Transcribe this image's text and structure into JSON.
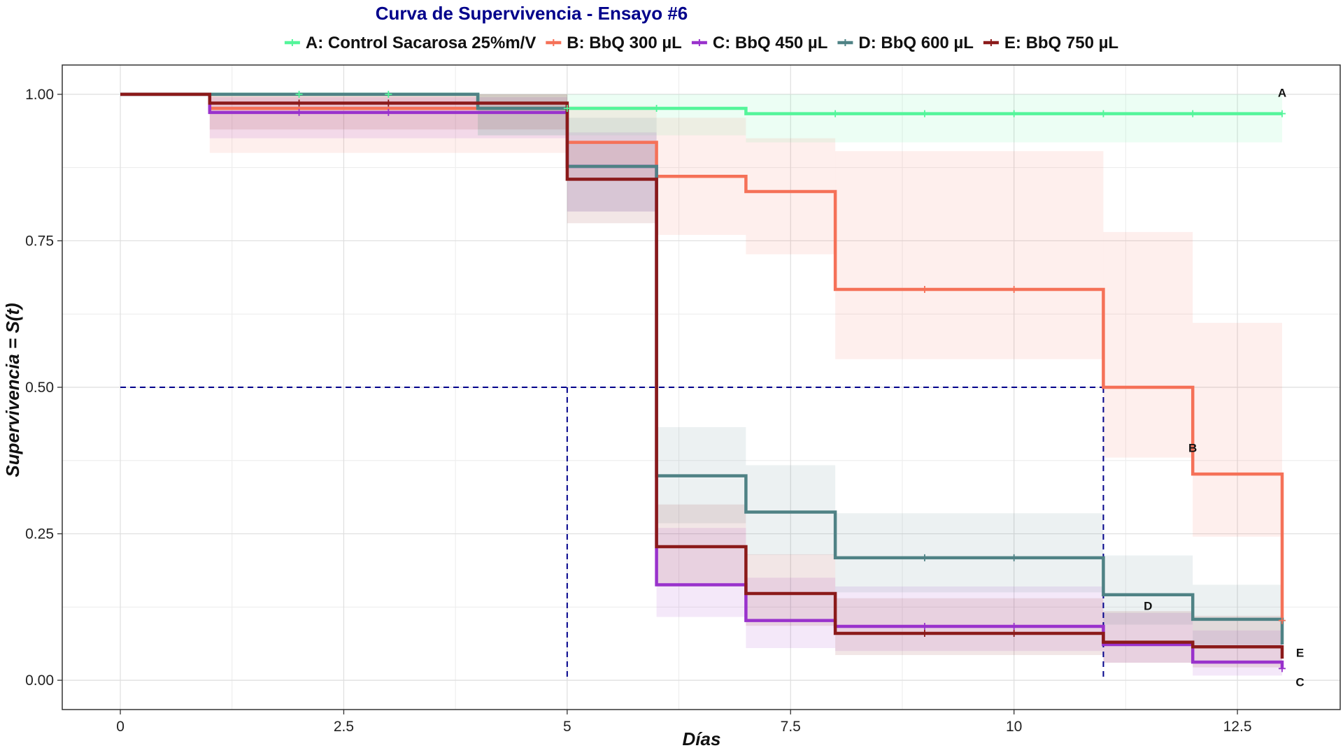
{
  "chart_data": {
    "type": "line",
    "subtype": "kaplan-meier step curves with confidence bands",
    "title": "Curva de Supervivencia - Ensayo #6",
    "xlabel": "Días",
    "ylabel": "Supervivencia = S(t)",
    "xlim": [
      -0.65,
      13.65
    ],
    "ylim": [
      -0.05,
      1.05
    ],
    "xticks": [
      0,
      2.5,
      5,
      7.5,
      10,
      12.5
    ],
    "xtick_labels": [
      "0",
      "2.5",
      "5",
      "7.5",
      "10",
      "12.5"
    ],
    "yticks": [
      0,
      0.25,
      0.5,
      0.75,
      1.0
    ],
    "ytick_labels": [
      "0.00",
      "0.25",
      "0.50",
      "0.75",
      "1.00"
    ],
    "grid": true,
    "legend_position": "top",
    "median_line": {
      "y": 0.5,
      "x_end": 11,
      "drops_at": [
        5,
        11
      ],
      "color": "#00008B"
    },
    "series": [
      {
        "name": "A: Control Sacarosa 25%m/V",
        "end_label": "A",
        "color": "#54F59A",
        "x": [
          0,
          4,
          7,
          13
        ],
        "y": [
          1.0,
          0.976,
          0.967,
          0.967
        ],
        "lower": [
          1.0,
          0.93,
          0.918,
          0.918
        ],
        "upper": [
          1.0,
          1.0,
          1.0,
          1.0
        ],
        "censor_x": [
          2,
          3,
          5,
          6,
          8,
          9,
          10,
          11,
          12,
          13
        ]
      },
      {
        "name": "B: BbQ 300 µL",
        "end_label": "B",
        "color": "#F57158",
        "x": [
          0,
          1,
          4,
          5,
          6,
          7,
          8,
          11,
          12,
          13
        ],
        "y": [
          1.0,
          0.976,
          0.976,
          0.918,
          0.86,
          0.834,
          0.667,
          0.5,
          0.352,
          0.102
        ],
        "lower": [
          1.0,
          0.9,
          0.9,
          0.855,
          0.76,
          0.727,
          0.548,
          0.38,
          0.245,
          0.045
        ],
        "upper": [
          1.0,
          1.0,
          1.0,
          0.98,
          0.96,
          0.925,
          0.903,
          0.765,
          0.61,
          0.465
        ],
        "censor_x": [
          9,
          10,
          13
        ]
      },
      {
        "name": "C: BbQ 450 µL",
        "end_label": "C",
        "color": "#9932CC",
        "x": [
          0,
          1,
          4,
          5,
          6,
          7,
          8,
          11,
          12,
          13
        ],
        "y": [
          1.0,
          0.969,
          0.969,
          0.877,
          0.163,
          0.102,
          0.092,
          0.061,
          0.031,
          0.02
        ],
        "lower": [
          1.0,
          0.925,
          0.925,
          0.8,
          0.108,
          0.055,
          0.05,
          0.03,
          0.008,
          0.0
        ],
        "upper": [
          1.0,
          0.995,
          0.995,
          0.935,
          0.26,
          0.175,
          0.16,
          0.115,
          0.085,
          0.06
        ],
        "censor_x": [
          2,
          3,
          9,
          10,
          13
        ]
      },
      {
        "name": "D: BbQ 600 µL",
        "end_label": "D",
        "color": "#4F8285",
        "x": [
          0,
          4,
          5,
          6,
          7,
          8,
          11,
          12,
          13
        ],
        "y": [
          1.0,
          0.976,
          0.877,
          0.349,
          0.287,
          0.209,
          0.146,
          0.104,
          0.061
        ],
        "lower": [
          1.0,
          0.93,
          0.8,
          0.268,
          0.214,
          0.15,
          0.095,
          0.06,
          0.025
        ],
        "upper": [
          1.0,
          1.0,
          0.96,
          0.432,
          0.367,
          0.285,
          0.213,
          0.163,
          0.12
        ],
        "censor_x": [
          9,
          10
        ]
      },
      {
        "name": "E: BbQ 750 µL",
        "end_label": "E",
        "color": "#8B1A1A",
        "x": [
          0,
          1,
          4,
          5,
          6,
          7,
          8,
          11,
          12,
          13
        ],
        "y": [
          1.0,
          0.985,
          0.985,
          0.855,
          0.228,
          0.148,
          0.08,
          0.065,
          0.057,
          0.037
        ],
        "lower": [
          1.0,
          0.94,
          0.94,
          0.78,
          0.16,
          0.093,
          0.043,
          0.03,
          0.022,
          0.01
        ],
        "upper": [
          1.0,
          1.0,
          1.0,
          0.92,
          0.3,
          0.215,
          0.14,
          0.118,
          0.11,
          0.085
        ],
        "censor_x": [
          2,
          3,
          9,
          10
        ]
      }
    ],
    "end_labels": [
      {
        "text": "A",
        "x": 13,
        "y": 1.003
      },
      {
        "text": "B",
        "x": 12,
        "y": 0.397
      },
      {
        "text": "D",
        "x": 11.5,
        "y": 0.127
      },
      {
        "text": "E",
        "x": 13.2,
        "y": 0.047
      },
      {
        "text": "C",
        "x": 13.2,
        "y": -0.003
      }
    ]
  }
}
